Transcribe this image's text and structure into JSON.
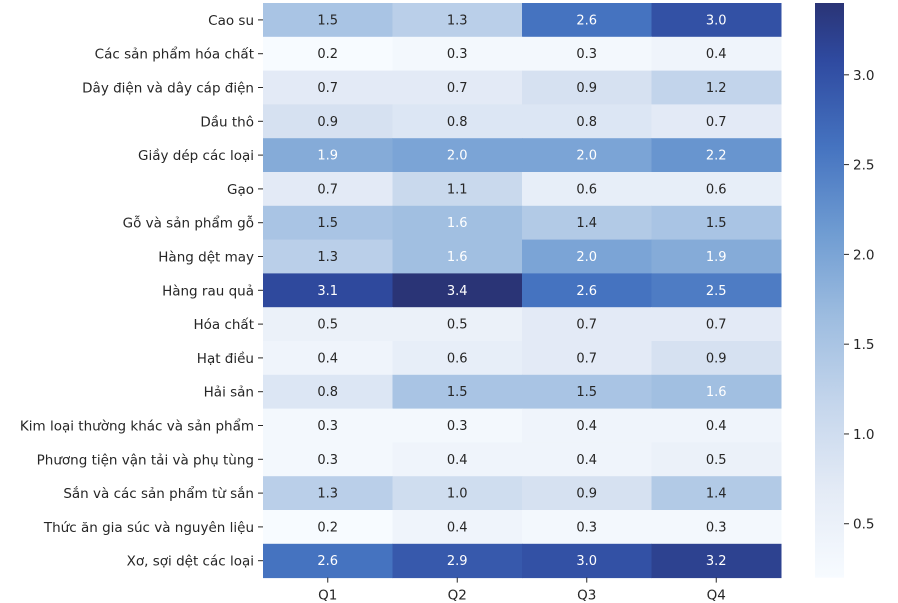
{
  "chart_data": {
    "type": "heatmap",
    "title": "",
    "xlabel": "",
    "ylabel": "",
    "columns": [
      "Q1",
      "Q2",
      "Q3",
      "Q4"
    ],
    "rows": [
      "Cao su",
      "Các sản phẩm hóa chất",
      "Dây điện và dây cáp điện",
      "Dầu thô",
      "Giầy dép các loại",
      "Gạo",
      "Gỗ và sản phẩm gỗ",
      "Hàng dệt may",
      "Hàng rau quả",
      "Hóa chất",
      "Hạt điều",
      "Hải sản",
      "Kim loại thường khác và sản phẩm",
      "Phương tiện vận tải và phụ tùng",
      "Sắn và các sản phẩm từ sắn",
      "Thức ăn gia súc và nguyên liệu",
      "Xơ, sợi dệt các loại"
    ],
    "values": [
      [
        1.5,
        1.3,
        2.6,
        3.0
      ],
      [
        0.2,
        0.3,
        0.3,
        0.4
      ],
      [
        0.7,
        0.7,
        0.9,
        1.2
      ],
      [
        0.9,
        0.8,
        0.8,
        0.7
      ],
      [
        1.9,
        2.0,
        2.0,
        2.2
      ],
      [
        0.7,
        1.1,
        0.6,
        0.6
      ],
      [
        1.5,
        1.6,
        1.4,
        1.5
      ],
      [
        1.3,
        1.6,
        2.0,
        1.9
      ],
      [
        3.1,
        3.4,
        2.6,
        2.5
      ],
      [
        0.5,
        0.5,
        0.7,
        0.7
      ],
      [
        0.4,
        0.6,
        0.7,
        0.9
      ],
      [
        0.8,
        1.5,
        1.5,
        1.6
      ],
      [
        0.3,
        0.3,
        0.4,
        0.4
      ],
      [
        0.3,
        0.4,
        0.4,
        0.5
      ],
      [
        1.3,
        1.0,
        0.9,
        1.4
      ],
      [
        0.2,
        0.4,
        0.3,
        0.3
      ],
      [
        2.6,
        2.9,
        3.0,
        3.2
      ]
    ],
    "colorbar": {
      "range": [
        0.2,
        3.4
      ],
      "ticks": [
        0.5,
        1.0,
        1.5,
        2.0,
        2.5,
        3.0
      ],
      "tick_labels": [
        "0.5",
        "1.0",
        "1.5",
        "2.0",
        "2.5",
        "3.0"
      ],
      "colormap": "Blues-to-navy",
      "color_low": "#f7fbff",
      "color_high": "#2a3476"
    },
    "annotation_format": "0.0",
    "text_color_dark": "#262626",
    "text_color_light": "#ffffff"
  }
}
